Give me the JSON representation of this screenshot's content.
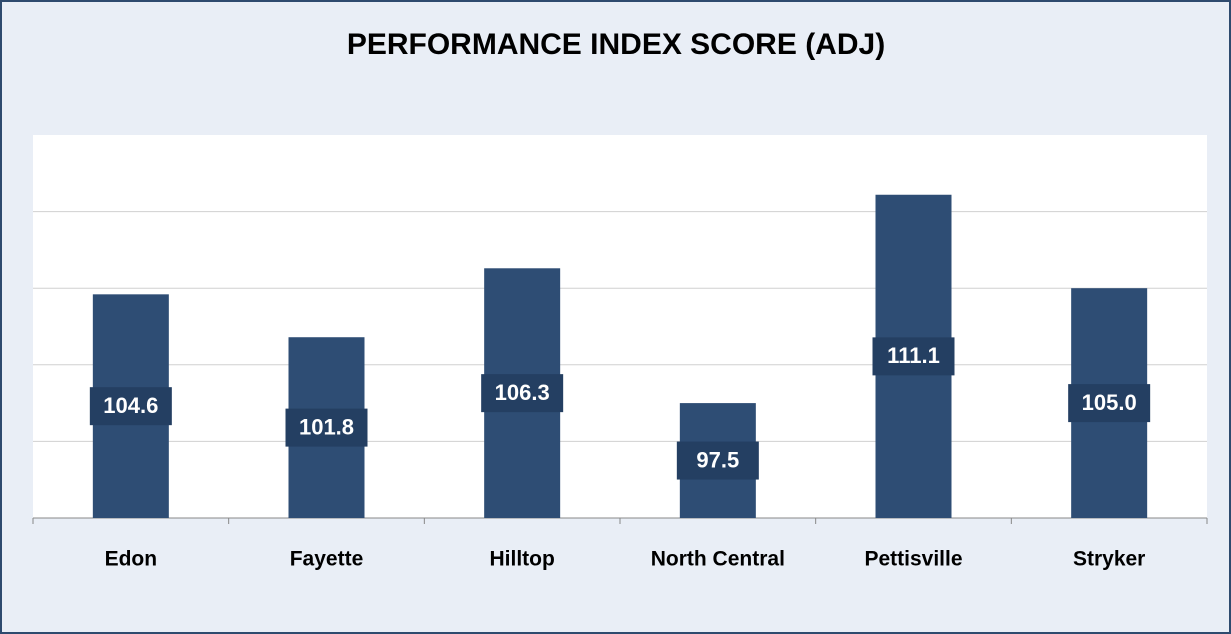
{
  "chart_data": {
    "type": "bar",
    "title": "PERFORMANCE INDEX SCORE (ADJ)",
    "categories": [
      "Edon",
      "Fayette",
      "Hilltop",
      "North Central",
      "Pettisville",
      "Stryker"
    ],
    "values": [
      104.6,
      101.8,
      106.3,
      97.5,
      111.1,
      105.0
    ],
    "value_labels": [
      "104.6",
      "101.8",
      "106.3",
      "97.5",
      "111.1",
      "105.0"
    ],
    "color": "#2e4d74",
    "ylim": [
      90,
      115
    ],
    "yticks": [
      90,
      95,
      100,
      105,
      110
    ],
    "grid": true
  }
}
